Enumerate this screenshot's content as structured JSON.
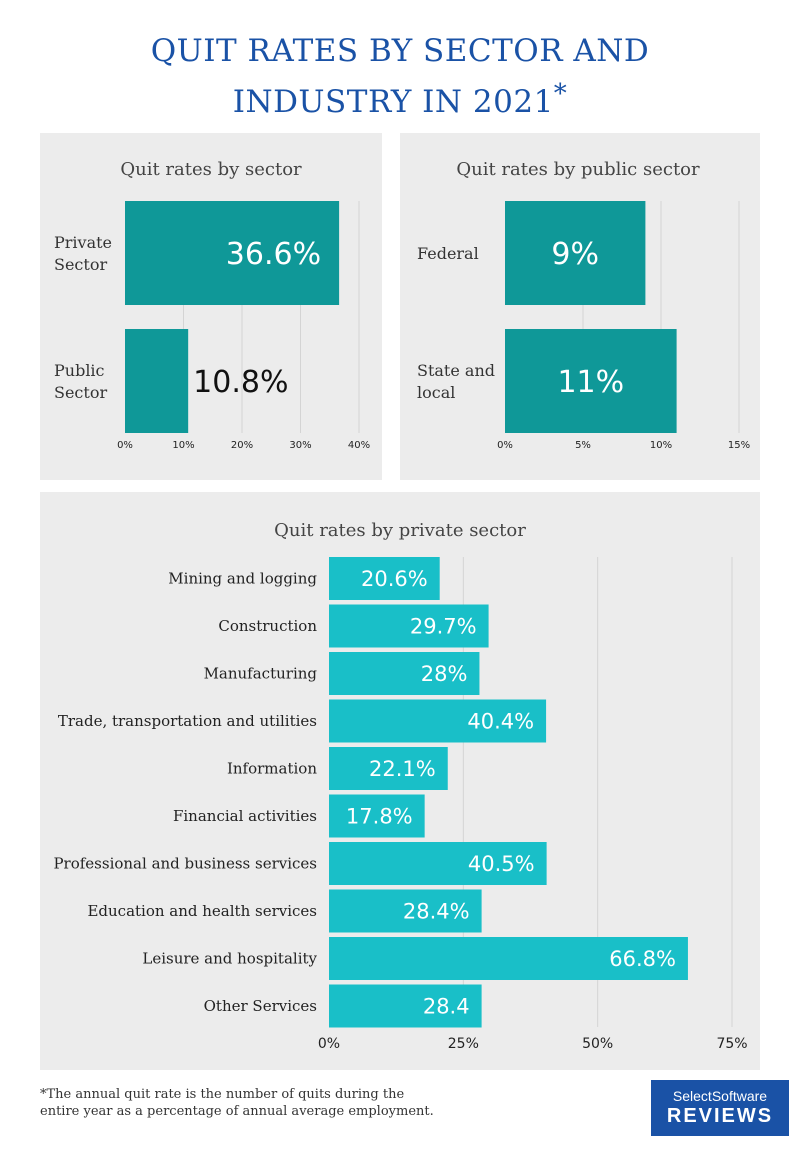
{
  "title": {
    "line1": "QUIT RATES BY SECTOR AND",
    "line2": "INDUSTRY IN 2021",
    "mark": "*"
  },
  "colors": {
    "dark_teal": "#0f9898",
    "bright_teal": "#19bfc8",
    "panel_bg": "#ececec",
    "title_blue": "#1a52a6"
  },
  "footnote": {
    "line1": "*The annual quit rate is the number of quits during the",
    "line2": "entire year as a percentage of annual average employment."
  },
  "logo": {
    "line1": "SelectSoftware",
    "line2": "REVIEWS"
  },
  "chart_data": [
    {
      "type": "bar",
      "orientation": "horizontal",
      "title": "Quit rates by sector",
      "categories": [
        "Private Sector",
        "Public Sector"
      ],
      "value_labels": [
        "36.6%",
        "10.8%"
      ],
      "values": [
        36.6,
        10.8
      ],
      "xlim": [
        0,
        40
      ],
      "ticks": [
        "0%",
        "10%",
        "20%",
        "30%",
        "40%"
      ],
      "grid": true
    },
    {
      "type": "bar",
      "orientation": "horizontal",
      "title": "Quit rates by public sector",
      "categories": [
        "Federal",
        "State and local"
      ],
      "value_labels": [
        "9%",
        "11%"
      ],
      "values": [
        9,
        11
      ],
      "xlim": [
        0,
        15
      ],
      "ticks": [
        "0%",
        "5%",
        "10%",
        "15%"
      ],
      "grid": true
    },
    {
      "type": "bar",
      "orientation": "horizontal",
      "title": "Quit rates by private sector",
      "categories": [
        "Mining and logging",
        "Construction",
        "Manufacturing",
        "Trade, transportation and utilities",
        "Information",
        "Financial activities",
        "Professional and business services",
        "Education and health services",
        "Leisure and hospitality",
        "Other Services"
      ],
      "value_labels": [
        "20.6%",
        "29.7%",
        "28%",
        "40.4%",
        "22.1%",
        "17.8%",
        "40.5%",
        "28.4%",
        "66.8%",
        "28.4"
      ],
      "values": [
        20.6,
        29.7,
        28,
        40.4,
        22.1,
        17.8,
        40.5,
        28.4,
        66.8,
        28.4
      ],
      "xlim": [
        0,
        75
      ],
      "ticks": [
        "0%",
        "25%",
        "50%",
        "75%"
      ],
      "grid": true
    }
  ]
}
